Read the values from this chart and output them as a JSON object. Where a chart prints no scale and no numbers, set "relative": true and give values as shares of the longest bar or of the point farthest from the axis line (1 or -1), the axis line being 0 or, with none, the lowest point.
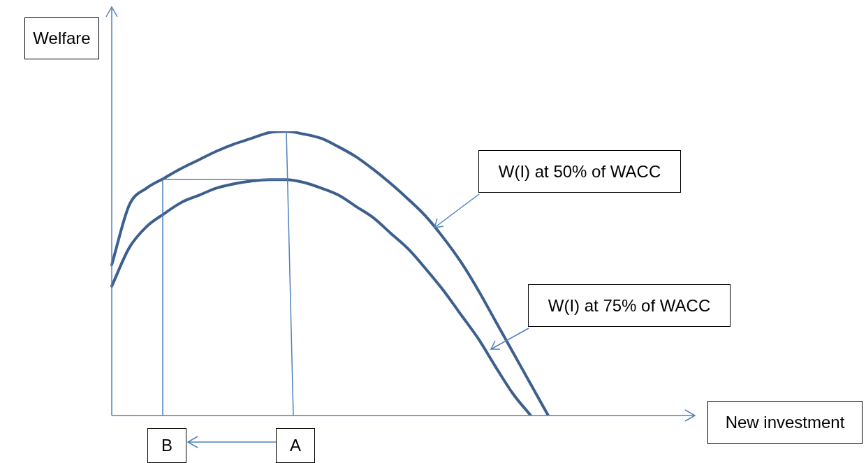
{
  "chart_data": {
    "type": "line",
    "relative": true,
    "legend": false,
    "marker": "none",
    "line_style": "solid",
    "categories": [
      null,
      null,
      null,
      null,
      null,
      null,
      null,
      null,
      null,
      null,
      null,
      null,
      null,
      null,
      null,
      null,
      null,
      null,
      null,
      null,
      null,
      null,
      null,
      null,
      null,
      null
    ],
    "series": [
      {
        "color": "#3d5f8e",
        "values": [
          0.53,
          0.74,
          0.8,
          0.835,
          0.87,
          0.9,
          0.93,
          0.955,
          0.975,
          0.995,
          1,
          0.99,
          0.975,
          0.945,
          0.91,
          0.865,
          0.815,
          0.76,
          0.7,
          0.625,
          0.54,
          0.44,
          0.33,
          0.22,
          0.11,
          0
        ]
      },
      {
        "color": "#3d5f8e",
        "values": [
          0.455,
          0.59,
          0.665,
          0.71,
          0.75,
          0.775,
          0.8,
          0.815,
          0.825,
          0.83,
          0.83,
          0.82,
          0.8,
          0.775,
          0.735,
          0.695,
          0.64,
          0.585,
          0.515,
          0.44,
          0.355,
          0.27,
          0.17,
          0.075,
          0,
          null
        ]
      }
    ],
    "annotations": [
      "Welfare",
      "New investment",
      "A",
      "B",
      "W(I) at 50% of WACC",
      "W(I) at 75% of WACC"
    ]
  }
}
